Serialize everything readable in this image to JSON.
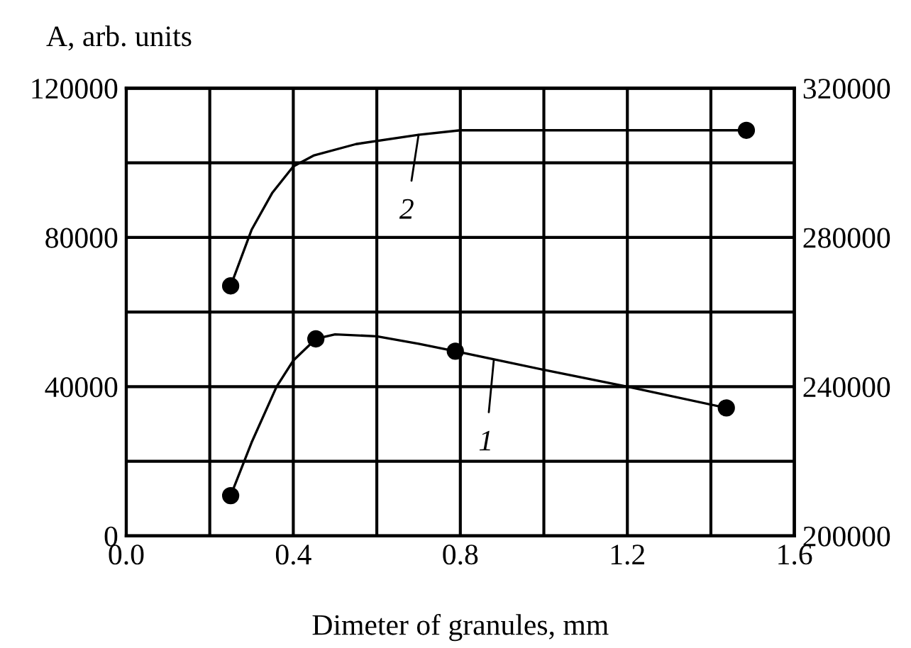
{
  "chart_data": {
    "type": "line",
    "xlabel": "Dimeter of granules, mm",
    "ylabel": "A, arb. units",
    "xlim": [
      0,
      1.6
    ],
    "xticks": [
      {
        "value": 0,
        "label": "0.0"
      },
      {
        "value": 0.2,
        "label": null
      },
      0.4,
      {
        "value": 0.6,
        "label": null
      },
      0.8,
      {
        "value": 1.0,
        "label": null
      },
      1.2,
      {
        "value": 1.4,
        "label": null
      },
      1.6
    ],
    "ylim": [
      0,
      120000
    ],
    "yticks": [
      0,
      {
        "value": 20000,
        "label": null
      },
      40000,
      {
        "value": 60000,
        "label": null
      },
      80000,
      {
        "value": 100000,
        "label": null
      },
      120000
    ],
    "y2lim": [
      200000,
      320000
    ],
    "y2ticks": [
      200000,
      {
        "value": 220000,
        "label": null
      },
      240000,
      {
        "value": 260000,
        "label": null
      },
      280000,
      {
        "value": 300000,
        "label": null
      },
      320000
    ],
    "grid": true,
    "legend": false,
    "series": [
      {
        "color": "#000000",
        "marker": "none",
        "x": [
          0.25,
          0.3,
          0.36,
          0.4,
          0.454,
          0.5,
          0.6,
          0.7,
          0.788,
          1.0,
          1.2,
          1.437
        ],
        "values": [
          10800,
          25000,
          40000,
          47000,
          52800,
          54000,
          53500,
          51500,
          49500,
          44500,
          40000,
          34300
        ]
      },
      {
        "type": "scatter",
        "color": "#000000",
        "marker": "circle",
        "x": [
          0.25,
          0.454,
          0.788,
          1.437
        ],
        "values": [
          10800,
          52800,
          49500,
          34300
        ]
      },
      {
        "color": "#000000",
        "marker": "none",
        "axis": "y2",
        "x": [
          0.25,
          0.3,
          0.35,
          0.4,
          0.45,
          0.55,
          0.7,
          0.8,
          1.485
        ],
        "values": [
          267000,
          282000,
          292000,
          299000,
          302000,
          305000,
          307500,
          308700,
          308700
        ]
      },
      {
        "type": "scatter",
        "color": "#000000",
        "marker": "circle",
        "axis": "y2",
        "x": [
          0.25,
          1.485
        ],
        "values": [
          267000,
          308700
        ]
      }
    ],
    "annotations": [
      {
        "text": "1",
        "x": 0.88,
        "y": 47000
      },
      {
        "text": "2",
        "x": 0.7,
        "y": 107500
      }
    ]
  }
}
